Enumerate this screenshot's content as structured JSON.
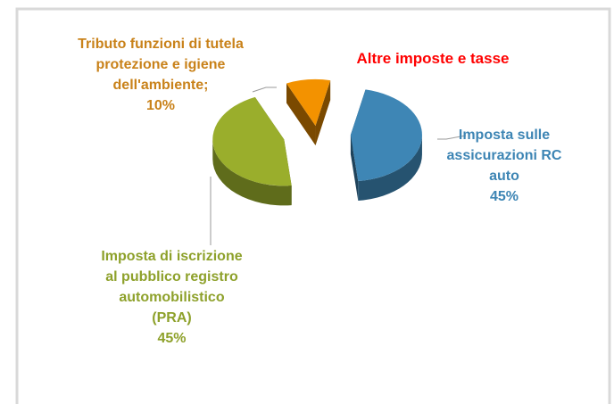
{
  "chart_data": {
    "type": "pie3d",
    "title": "Altre imposte e tasse",
    "categories": [
      "Imposta sulle assicurazioni RC auto",
      "Imposta di iscrizione al pubblico registro automobilistico (PRA)",
      "Tributo funzioni di tutela protezione e igiene dell'ambiente;"
    ],
    "values": [
      45,
      45,
      10
    ],
    "value_labels": [
      "45%",
      "45%",
      "10%"
    ],
    "colors": [
      "#3e86b5",
      "#9aae2c",
      "#f39200"
    ]
  }
}
